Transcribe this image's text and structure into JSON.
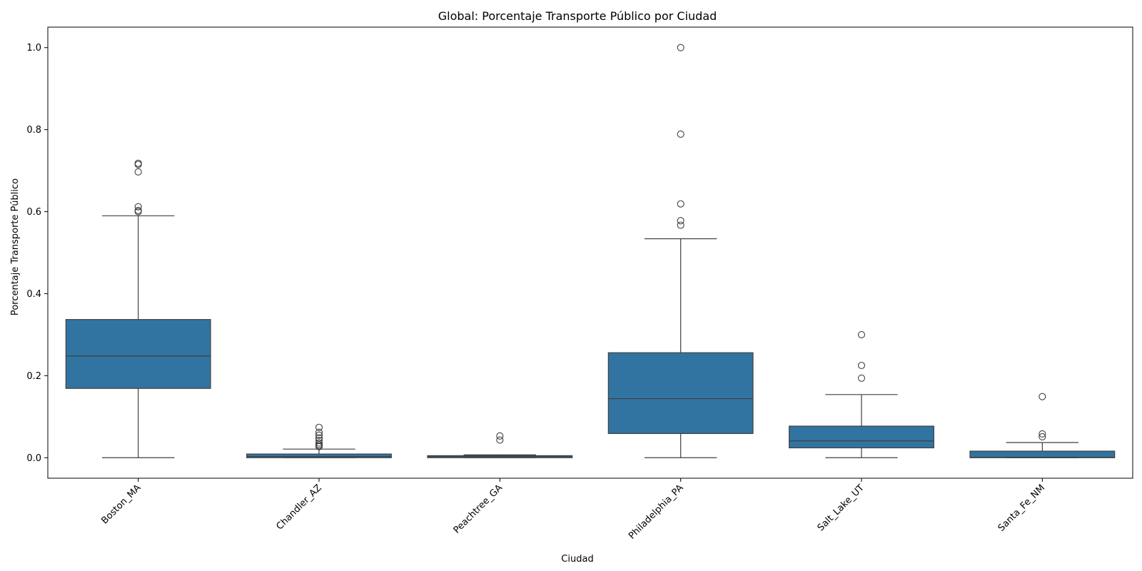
{
  "chart_data": {
    "type": "box",
    "title": "Global: Porcentaje Transporte Público por Ciudad",
    "xlabel": "Ciudad",
    "ylabel": "Porcentaje Transporte Público",
    "ylim": [
      -0.05,
      1.05
    ],
    "yticks": [
      "0.0",
      "0.2",
      "0.4",
      "0.6",
      "0.8",
      "1.0"
    ],
    "grid": false,
    "legend": "none",
    "box_color": "#3274a1",
    "edge_color": "#3f3f3f",
    "categories": [
      "Boston_MA",
      "Chandler_AZ",
      "Peachtree_GA",
      "Philadelphia_PA",
      "Salt_Lake_UT",
      "Santa_Fe_NM"
    ],
    "boxes": [
      {
        "category": "Boston_MA",
        "whisker_low": 0.0,
        "q1": 0.169,
        "median": 0.248,
        "q3": 0.337,
        "whisker_high": 0.59,
        "outliers": [
          0.718,
          0.715,
          0.697,
          0.612,
          0.603,
          0.6
        ]
      },
      {
        "category": "Chandler_AZ",
        "whisker_low": 0.0,
        "q1": 0.0,
        "median": 0.003,
        "q3": 0.009,
        "whisker_high": 0.021,
        "outliers": [
          0.074,
          0.062,
          0.055,
          0.048,
          0.042,
          0.036,
          0.032,
          0.029,
          0.027
        ]
      },
      {
        "category": "Peachtree_GA",
        "whisker_low": 0.0,
        "q1": 0.0,
        "median": 0.003,
        "q3": 0.005,
        "whisker_high": 0.007,
        "outliers": [
          0.053,
          0.043
        ]
      },
      {
        "category": "Philadelphia_PA",
        "whisker_low": 0.0,
        "q1": 0.059,
        "median": 0.144,
        "q3": 0.256,
        "whisker_high": 0.534,
        "outliers": [
          1.0,
          0.789,
          0.619,
          0.578,
          0.567
        ]
      },
      {
        "category": "Salt_Lake_UT",
        "whisker_low": 0.0,
        "q1": 0.024,
        "median": 0.041,
        "q3": 0.077,
        "whisker_high": 0.154,
        "outliers": [
          0.3,
          0.225,
          0.194
        ]
      },
      {
        "category": "Santa_Fe_NM",
        "whisker_low": 0.0,
        "q1": 0.0,
        "median": 0.001,
        "q3": 0.016,
        "whisker_high": 0.037,
        "outliers": [
          0.149,
          0.058,
          0.051
        ]
      }
    ]
  }
}
